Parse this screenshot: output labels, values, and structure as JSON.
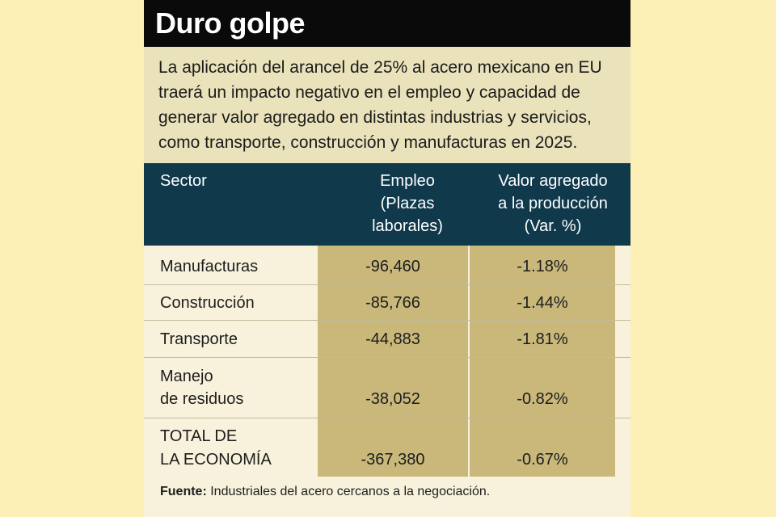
{
  "title": "Duro golpe",
  "intro": "La aplicación del arancel de 25% al acero mexicano en EU traerá un impacto negativo en el empleo y capacidad de generar valor agregado en distintas industrias y servicios, como transporte, construcción y manufacturas en 2025.",
  "columns": {
    "sector": "Sector",
    "empleo": [
      "Empleo",
      "(Plazas",
      "laborales)"
    ],
    "valor": [
      "Valor agregado",
      "a la producción",
      "(Var. %)"
    ]
  },
  "rows": [
    {
      "sector": [
        "Manufacturas"
      ],
      "empleo": "-96,460",
      "valor": "-1.18%"
    },
    {
      "sector": [
        "Construcción"
      ],
      "empleo": "-85,766",
      "valor": "-1.44%"
    },
    {
      "sector": [
        "Transporte"
      ],
      "empleo": "-44,883",
      "valor": "-1.81%"
    },
    {
      "sector": [
        "Manejo",
        "de residuos"
      ],
      "empleo": "-38,052",
      "valor": "-0.82%"
    },
    {
      "sector": [
        "TOTAL DE",
        "LA ECONOMÍA"
      ],
      "empleo": "-367,380",
      "valor": "-0.67%"
    }
  ],
  "source": {
    "label": "Fuente:",
    "text": "Industriales del acero cercanos a la negociación."
  },
  "colors": {
    "page_background": "#fdf0b6",
    "title_bar": "#0a0a0a",
    "intro_background": "#e9e2bb",
    "header_background": "#10394c",
    "highlight_column": "#c9b87a"
  }
}
